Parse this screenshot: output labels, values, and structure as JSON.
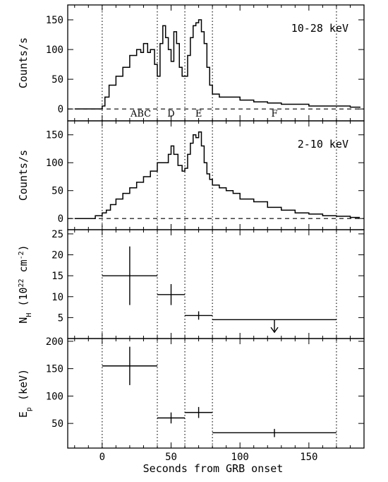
{
  "figure": {
    "xlabel": "Seconds from GRB onset",
    "xlim": [
      -25,
      190
    ],
    "xticks": [
      0,
      50,
      100,
      150
    ],
    "vlines": [
      0,
      40,
      60,
      80,
      170
    ]
  },
  "chart_data": [
    {
      "type": "line",
      "panel": "lightcurve-hard",
      "annotation": "10-28 keV",
      "ylabel": "Counts/s",
      "ylim": [
        -20,
        175
      ],
      "yticks": [
        0,
        50,
        100,
        150
      ],
      "baseline": 0,
      "segment_labels": [
        {
          "text": "ABC",
          "x": 28
        },
        {
          "text": "D",
          "x": 50
        },
        {
          "text": "E",
          "x": 70
        },
        {
          "text": "F",
          "x": 125
        }
      ],
      "series": [
        {
          "x": [
            -20,
            -5,
            0,
            2,
            5,
            10,
            15,
            20,
            25,
            28,
            30,
            33,
            35,
            38,
            40,
            42,
            44,
            46,
            48,
            50,
            52,
            54,
            56,
            58,
            60,
            62,
            64,
            66,
            68,
            70,
            72,
            74,
            76,
            78,
            80,
            85,
            90,
            100,
            110,
            120,
            130,
            140,
            150,
            160,
            170,
            180,
            187
          ],
          "y": [
            0,
            0,
            5,
            20,
            40,
            55,
            70,
            90,
            100,
            95,
            110,
            95,
            100,
            75,
            55,
            110,
            140,
            120,
            100,
            80,
            130,
            110,
            70,
            55,
            55,
            90,
            120,
            140,
            145,
            150,
            130,
            110,
            70,
            40,
            25,
            20,
            20,
            15,
            12,
            10,
            8,
            8,
            5,
            5,
            5,
            3,
            2
          ]
        }
      ]
    },
    {
      "type": "line",
      "panel": "lightcurve-soft",
      "annotation": "2-10 keV",
      "ylabel": "Counts/s",
      "ylim": [
        -20,
        175
      ],
      "yticks": [
        0,
        50,
        100,
        150
      ],
      "baseline": 0,
      "series": [
        {
          "x": [
            -20,
            -5,
            0,
            3,
            6,
            10,
            15,
            20,
            25,
            30,
            35,
            40,
            45,
            48,
            50,
            52,
            55,
            58,
            60,
            62,
            64,
            66,
            68,
            70,
            72,
            74,
            76,
            78,
            80,
            85,
            90,
            95,
            100,
            110,
            120,
            130,
            140,
            150,
            160,
            170,
            180,
            187
          ],
          "y": [
            0,
            5,
            10,
            15,
            25,
            35,
            45,
            55,
            65,
            75,
            85,
            100,
            100,
            115,
            130,
            115,
            95,
            85,
            90,
            115,
            135,
            150,
            145,
            155,
            130,
            100,
            80,
            70,
            60,
            55,
            50,
            45,
            35,
            30,
            20,
            15,
            10,
            8,
            5,
            4,
            2,
            2
          ]
        }
      ]
    },
    {
      "type": "scatter",
      "panel": "nh",
      "ylabel": "N_H (10^22 cm^-2)",
      "ylim": [
        0,
        26
      ],
      "yticks": [
        5,
        10,
        15,
        20,
        25
      ],
      "points": [
        {
          "x": 20,
          "xlo": 0,
          "xhi": 40,
          "y": 15,
          "ylo": 8,
          "yhi": 22
        },
        {
          "x": 50,
          "xlo": 40,
          "xhi": 60,
          "y": 10.5,
          "ylo": 8,
          "yhi": 13
        },
        {
          "x": 70,
          "xlo": 60,
          "xhi": 80,
          "y": 5.5,
          "ylo": 4.5,
          "yhi": 6.5
        },
        {
          "x": 125,
          "xlo": 80,
          "xhi": 170,
          "y": 4.5,
          "upper_limit": true,
          "arrow_to": 1.5
        }
      ]
    },
    {
      "type": "scatter",
      "panel": "ep",
      "ylabel": "E_p (keV)",
      "ylim": [
        5,
        205
      ],
      "yticks": [
        50,
        100,
        150,
        200
      ],
      "points": [
        {
          "x": 20,
          "xlo": 0,
          "xhi": 40,
          "y": 155,
          "ylo": 120,
          "yhi": 190
        },
        {
          "x": 50,
          "xlo": 40,
          "xhi": 60,
          "y": 60,
          "ylo": 50,
          "yhi": 70
        },
        {
          "x": 70,
          "xlo": 60,
          "xhi": 80,
          "y": 70,
          "ylo": 60,
          "yhi": 80
        },
        {
          "x": 125,
          "xlo": 80,
          "xhi": 170,
          "y": 33,
          "ylo": 25,
          "yhi": 40
        }
      ]
    }
  ]
}
